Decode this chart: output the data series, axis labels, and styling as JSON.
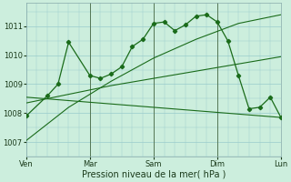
{
  "background_color": "#cceedd",
  "grid_color": "#99cccc",
  "line_color": "#1a6b1a",
  "xlabel": "Pression niveau de la mer( hPa )",
  "ylim": [
    1006.5,
    1011.8
  ],
  "yticks": [
    1007,
    1008,
    1009,
    1010,
    1011
  ],
  "series1_x": [
    0,
    2,
    3,
    4,
    6,
    7,
    8,
    9,
    10,
    11,
    12,
    13,
    14,
    15,
    16,
    17,
    18,
    19,
    20,
    21,
    22,
    23,
    24
  ],
  "series1_y": [
    1007.9,
    1008.6,
    1009.0,
    1010.45,
    1009.3,
    1009.2,
    1009.35,
    1009.6,
    1010.3,
    1010.55,
    1011.1,
    1011.15,
    1010.85,
    1011.05,
    1011.35,
    1011.4,
    1011.15,
    1010.5,
    1009.3,
    1008.15,
    1008.2,
    1008.55,
    1007.85
  ],
  "series2_x": [
    0,
    4,
    8,
    12,
    16,
    20,
    24
  ],
  "series2_y": [
    1007.05,
    1008.2,
    1009.1,
    1009.9,
    1010.55,
    1011.1,
    1011.4
  ],
  "series3_x": [
    0,
    4,
    8,
    12,
    16,
    20,
    24
  ],
  "series3_y": [
    1008.35,
    1008.65,
    1008.95,
    1009.2,
    1009.45,
    1009.7,
    1009.95
  ],
  "series4_x": [
    0,
    24
  ],
  "series4_y": [
    1008.55,
    1007.85
  ],
  "xlim": [
    0,
    24
  ],
  "xtick_positions": [
    0,
    6,
    9,
    12,
    18,
    24
  ],
  "xtick_labels": [
    "Ven",
    "| Mar",
    "Sam",
    "| Dim",
    "",
    "| Lun"
  ],
  "vlines": [
    6,
    12,
    18,
    24
  ],
  "title_fontsize": 7,
  "tick_fontsize": 6,
  "xlabel_fontsize": 7
}
